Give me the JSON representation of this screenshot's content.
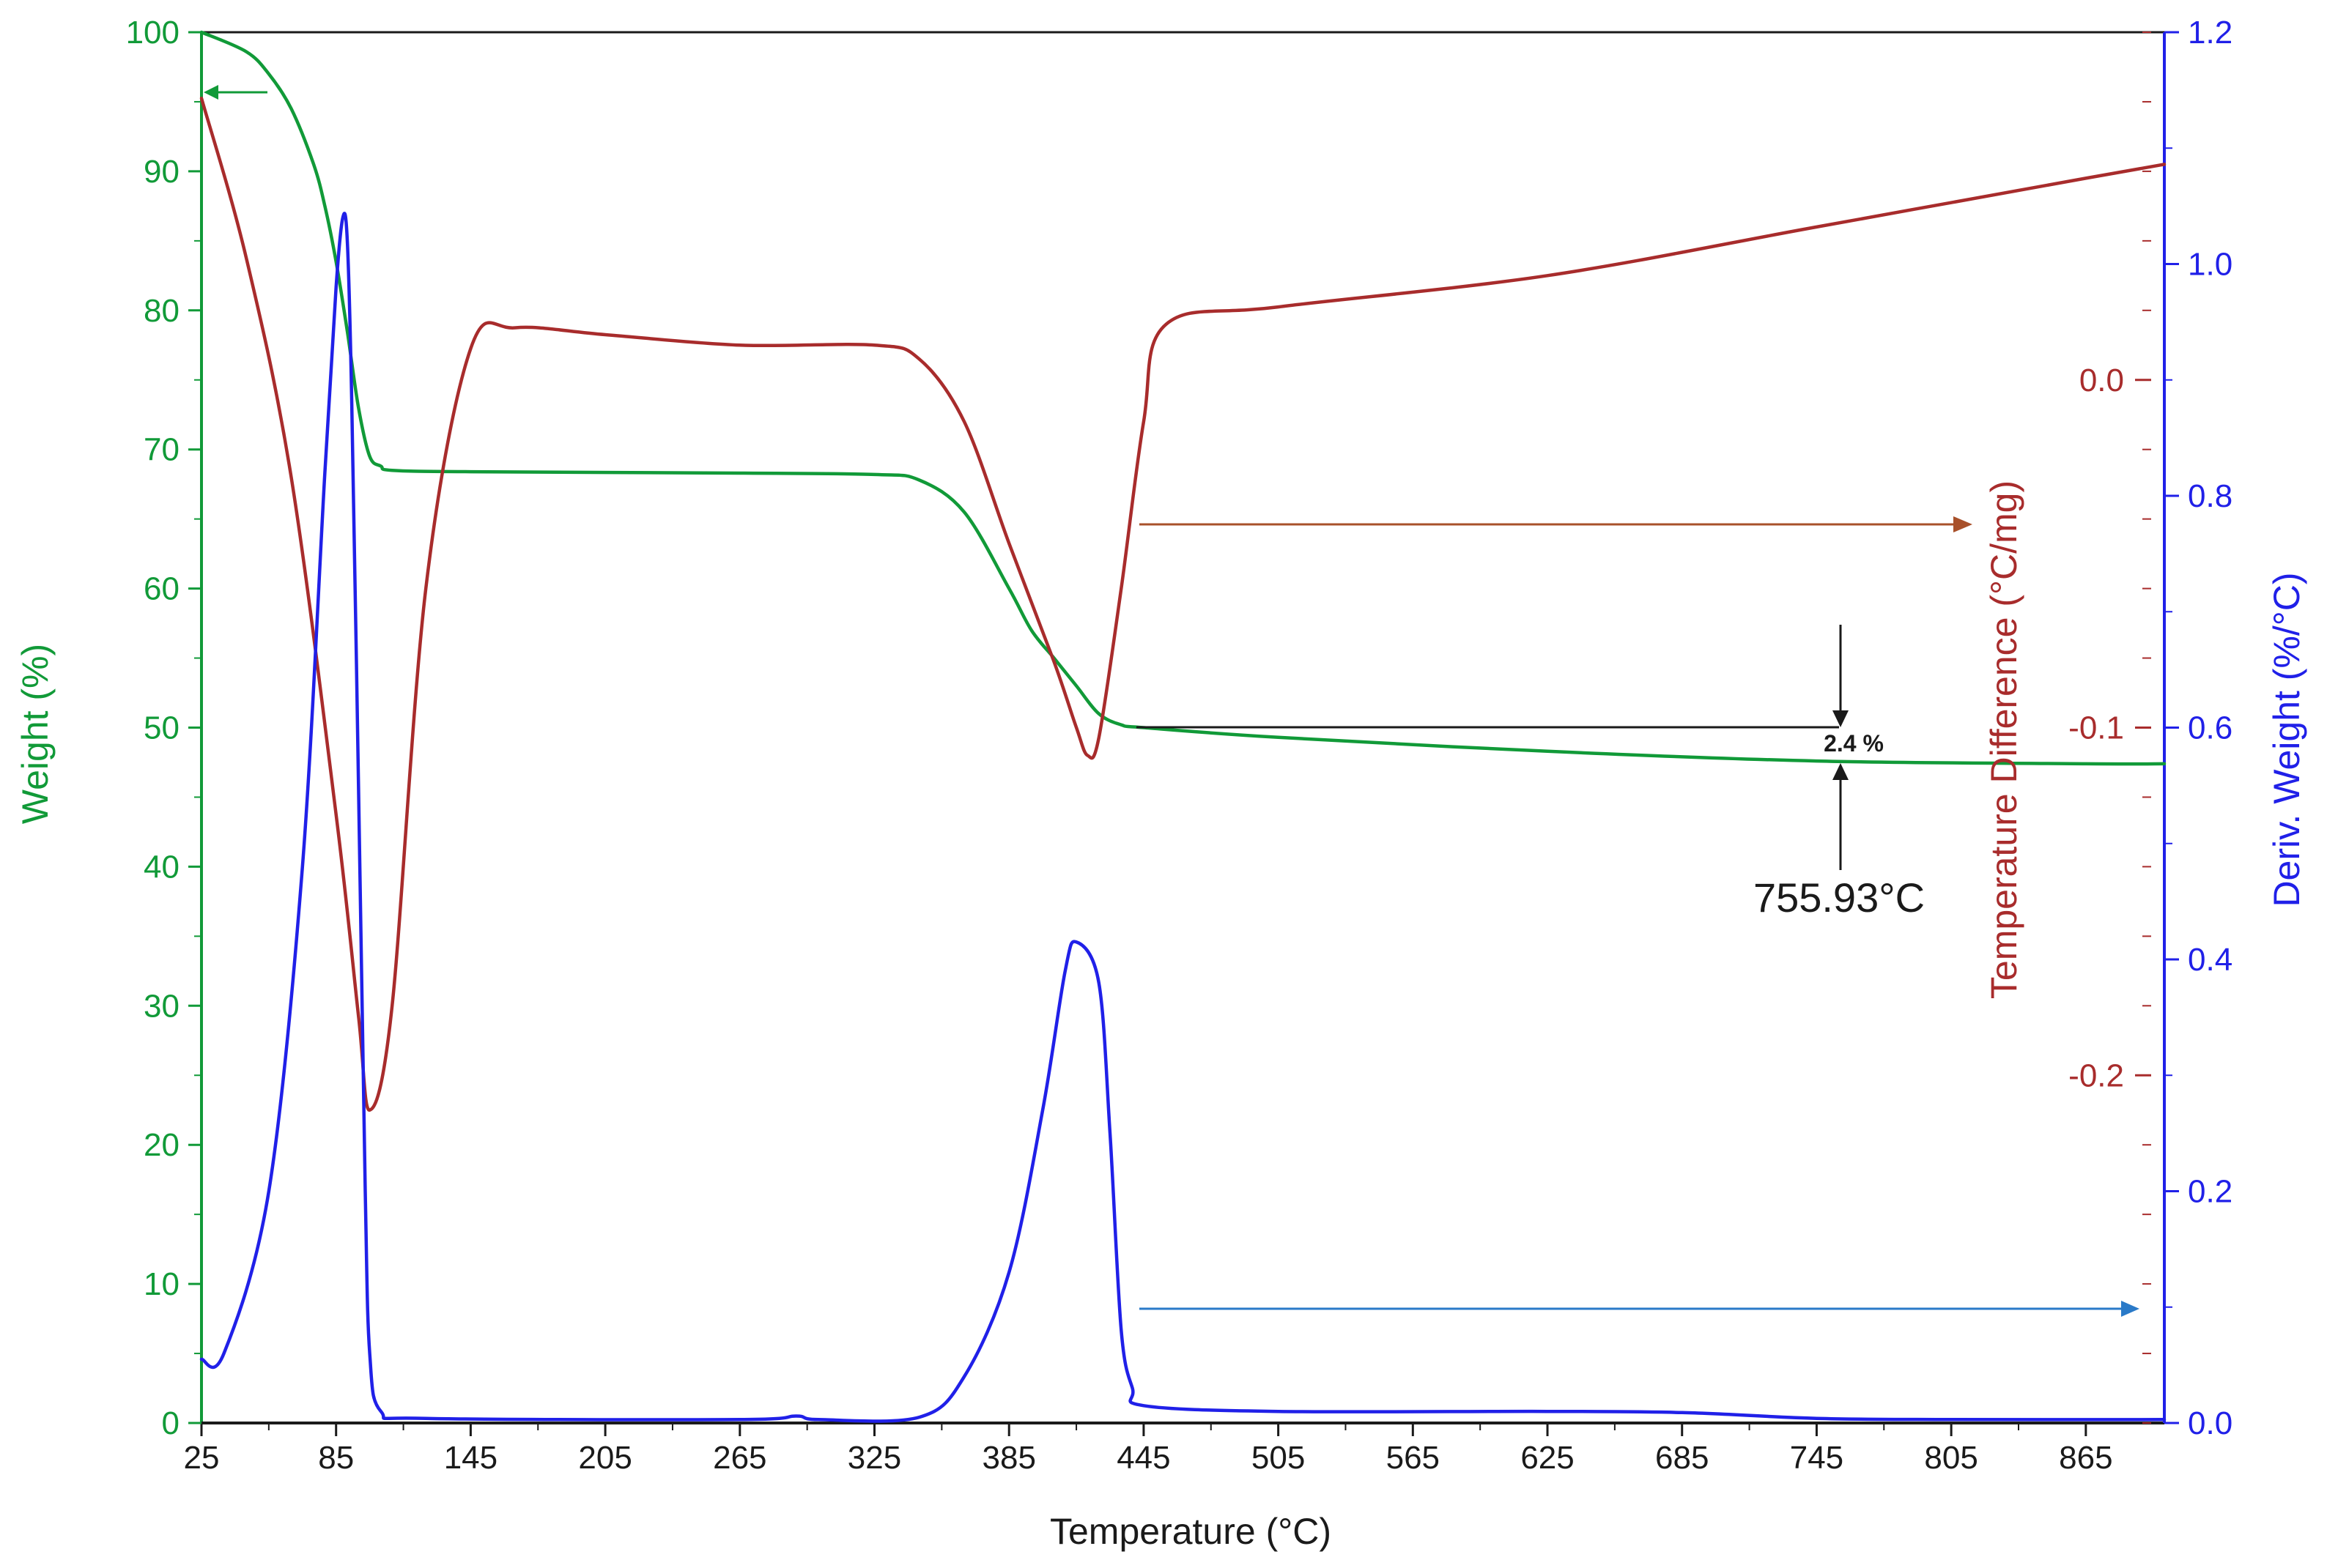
{
  "chart_data": {
    "type": "line",
    "xlabel": "Temperature (°C)",
    "ylabel_left": "Weight (%)",
    "ylabel_right_inner": "Temperature Difference (°C/mg)",
    "ylabel_right_outer": "Deriv. Weight (%/°C)",
    "x_ticks": [
      25,
      85,
      145,
      205,
      265,
      325,
      385,
      445,
      505,
      565,
      625,
      685,
      745,
      805,
      865
    ],
    "xlim": [
      25,
      900
    ],
    "y_left_ticks": [
      0,
      10,
      20,
      30,
      40,
      50,
      60,
      70,
      80,
      90,
      100
    ],
    "ylim_left": [
      0,
      100
    ],
    "y_td_ticks": [
      "0.0",
      "-0.1",
      "-0.2"
    ],
    "ylim_td": [
      -0.3,
      0.1
    ],
    "y_deriv_ticks": [
      "0.0",
      "0.2",
      "0.4",
      "0.6",
      "0.8",
      "1.0",
      "1.2"
    ],
    "ylim_deriv": [
      0,
      1.2
    ],
    "grid": false,
    "series": [
      {
        "axis": "left",
        "color": "#119a38",
        "x": [
          25,
          45,
          55,
          65,
          75,
          80,
          85,
          90,
          95,
          100,
          105,
          110,
          145,
          265,
          325,
          345,
          365,
          385,
          395,
          405,
          415,
          425,
          435,
          445,
          505,
          625,
          745,
          865,
          900
        ],
        "y": [
          100,
          98.6,
          97,
          94.5,
          90.5,
          87.5,
          83.5,
          78.5,
          73,
          69.5,
          68.8,
          68.5,
          68.4,
          68.3,
          68.2,
          67.8,
          65.5,
          60,
          57,
          55,
          53,
          51,
          50.2,
          50,
          49.3,
          48.3,
          47.6,
          47.4,
          47.4
        ]
      },
      {
        "axis": "td",
        "color": "#a82c2c",
        "x": [
          25,
          45,
          65,
          85,
          95,
          100,
          110,
          125,
          145,
          165,
          205,
          265,
          325,
          345,
          365,
          385,
          405,
          415,
          420,
          425,
          435,
          445,
          455,
          505,
          625,
          745,
          865,
          900
        ],
        "y": [
          0.081,
          0.035,
          -0.028,
          -0.125,
          -0.183,
          -0.21,
          -0.18,
          -0.06,
          0.009,
          0.015,
          0.013,
          0.01,
          0.01,
          0.006,
          -0.012,
          -0.047,
          -0.081,
          -0.1,
          -0.108,
          -0.103,
          -0.06,
          -0.012,
          0.016,
          0.021,
          0.03,
          0.044,
          0.058,
          0.062
        ]
      },
      {
        "axis": "deriv",
        "color": "#2020e8",
        "x": [
          25,
          35,
          55,
          70,
          80,
          85,
          88,
          90,
          92,
          95,
          98,
          100,
          105,
          125,
          265,
          290,
          300,
          345,
          365,
          385,
          400,
          410,
          415,
          425,
          430,
          435,
          440,
          445,
          505,
          625,
          685,
          745,
          805,
          900
        ],
        "y": [
          0.055,
          0.06,
          0.2,
          0.48,
          0.82,
          0.98,
          1.04,
          1.02,
          0.88,
          0.55,
          0.2,
          0.06,
          0.01,
          0.004,
          0.003,
          0.006,
          0.003,
          0.005,
          0.04,
          0.13,
          0.27,
          0.39,
          0.415,
          0.38,
          0.25,
          0.08,
          0.03,
          0.015,
          0.01,
          0.01,
          0.009,
          0.004,
          0.003,
          0.003
        ]
      }
    ],
    "annotations": {
      "step_change": "2.4 %",
      "temperature_marker": "755.93°C"
    }
  }
}
